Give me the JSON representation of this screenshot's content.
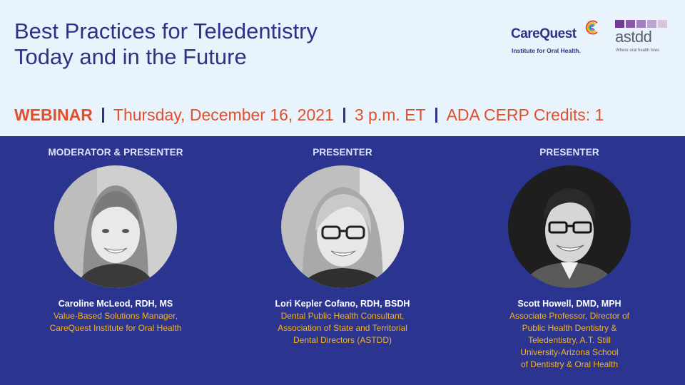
{
  "header": {
    "title_lines": [
      "Best Practices for Teledentistry",
      "Today and in the Future"
    ]
  },
  "logos": {
    "carequest": {
      "name": "CareQuest",
      "tagline": "Institute for Oral Health."
    },
    "astdd": {
      "name": "astdd",
      "tagline": "Where oral health lives"
    }
  },
  "event": {
    "type": "WEBINAR",
    "date": "Thursday, December 16, 2021",
    "time": "3 p.m. ET",
    "credits": "ADA CERP Credits: 1"
  },
  "presenters": [
    {
      "role": "MODERATOR & PRESENTER",
      "name": "Caroline McLeod, RDH, MS",
      "desc": [
        "Value-Based Solutions Manager,",
        "CareQuest Institute for Oral Health"
      ]
    },
    {
      "role": "PRESENTER",
      "name": "Lori Kepler Cofano, RDH, BSDH",
      "desc": [
        "Dental Public Health Consultant,",
        "Association of State and Territorial",
        "Dental Directors (ASTDD)"
      ]
    },
    {
      "role": "PRESENTER",
      "name": "Scott Howell, DMD, MPH",
      "desc": [
        "Associate Professor, Director of",
        "Public Health Dentistry &",
        "Teledentistry, A.T. Still",
        "University-Arizona School",
        "of Dentistry & Oral Health"
      ]
    }
  ],
  "colors": {
    "navy": "#2a3388",
    "orange": "#e24f2b",
    "gold": "#f7b21a",
    "panel_bg": "#2b3590",
    "header_bg": "#e9f3fb"
  }
}
